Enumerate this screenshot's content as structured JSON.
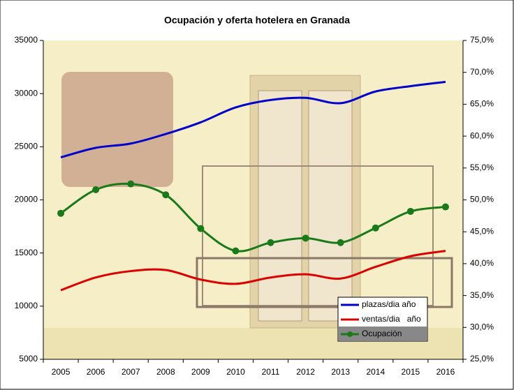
{
  "chart_data": {
    "type": "line",
    "title": "Ocupación y oferta hotelera en Granada",
    "categories": [
      "2005",
      "2006",
      "2007",
      "2008",
      "2009",
      "2010",
      "2011",
      "2012",
      "2013",
      "2014",
      "2015",
      "2016"
    ],
    "series": [
      {
        "name": "plazas/dia año",
        "color": "#0000cc",
        "values": [
          24000,
          24900,
          25300,
          26200,
          27300,
          28700,
          29400,
          29600,
          29100,
          30200,
          30700,
          31100
        ]
      },
      {
        "name": "ventas/dia   año",
        "color": "#dd0000",
        "values": [
          11500,
          12700,
          13300,
          13400,
          12500,
          12100,
          12700,
          13000,
          12600,
          13700,
          14700,
          15200
        ]
      },
      {
        "name": "Ocupación",
        "color": "#1a7a1a",
        "axis": "y2",
        "marker": true,
        "values": [
          47.9,
          51.6,
          52.5,
          50.8,
          45.5,
          42.0,
          43.3,
          44.0,
          43.3,
          45.6,
          48.2,
          48.9
        ]
      }
    ],
    "ylim": [
      5000,
      35000
    ],
    "yticks": [
      5000,
      10000,
      15000,
      20000,
      25000,
      30000,
      35000
    ],
    "y2lim": [
      25,
      75
    ],
    "y2ticks": [
      {
        "value": 25,
        "label": "25,0%"
      },
      {
        "value": 30,
        "label": "30,0%"
      },
      {
        "value": 35,
        "label": "35,0%"
      },
      {
        "value": 40,
        "label": "40,0%"
      },
      {
        "value": 45,
        "label": "45,0%"
      },
      {
        "value": 50,
        "label": "50,0%"
      },
      {
        "value": 55,
        "label": "55,0%"
      },
      {
        "value": 60,
        "label": "60,0%"
      },
      {
        "value": 65,
        "label": "65,0%"
      },
      {
        "value": 70,
        "label": "70,0%"
      },
      {
        "value": 75,
        "label": "75,0%"
      }
    ],
    "smooth": true,
    "legend": "lower right"
  }
}
